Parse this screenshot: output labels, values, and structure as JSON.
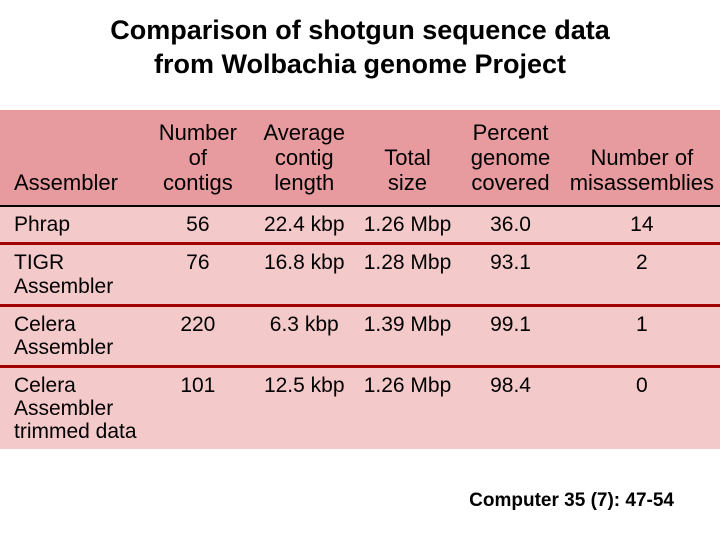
{
  "title_line1": "Comparison of shotgun sequence data",
  "title_line2": "from Wolbachia genome Project",
  "citation": "Computer 35 (7): 47-54",
  "table": {
    "type": "table",
    "background_color": "#f4c9c9",
    "header_background": "#e79b9f",
    "separator_color": "#a00000",
    "header_rule_color": "#000000",
    "font_family": "Arial",
    "header_fontsize": 22,
    "body_fontsize": 21,
    "columns": [
      {
        "label": "Assembler",
        "align": "left"
      },
      {
        "label_lines": [
          "Number",
          "of",
          "contigs"
        ],
        "align": "center"
      },
      {
        "label_lines": [
          "Average",
          "contig",
          "length"
        ],
        "align": "center"
      },
      {
        "label_lines": [
          "Total",
          "size"
        ],
        "align": "center"
      },
      {
        "label_lines": [
          "Percent",
          "genome",
          "covered"
        ],
        "align": "center"
      },
      {
        "label_lines": [
          "Number of",
          "misassemblies"
        ],
        "align": "center"
      }
    ],
    "rows": [
      {
        "assembler": "Phrap",
        "contigs": "56",
        "avg_len": "22.4 kbp",
        "total": "1.26 Mbp",
        "pct": "36.0",
        "mis": "14"
      },
      {
        "assembler": "TIGR Assembler",
        "contigs": "76",
        "avg_len": "16.8 kbp",
        "total": "1.28 Mbp",
        "pct": "93.1",
        "mis": "2"
      },
      {
        "assembler": "Celera Assembler",
        "contigs": "220",
        "avg_len": "6.3 kbp",
        "total": "1.39 Mbp",
        "pct": "99.1",
        "mis": "1"
      },
      {
        "assembler_lines": [
          "Celera Assembler",
          "trimmed data"
        ],
        "contigs": "101",
        "avg_len": "12.5 kbp",
        "total": "1.26 Mbp",
        "pct": "98.4",
        "mis": "0"
      }
    ]
  }
}
